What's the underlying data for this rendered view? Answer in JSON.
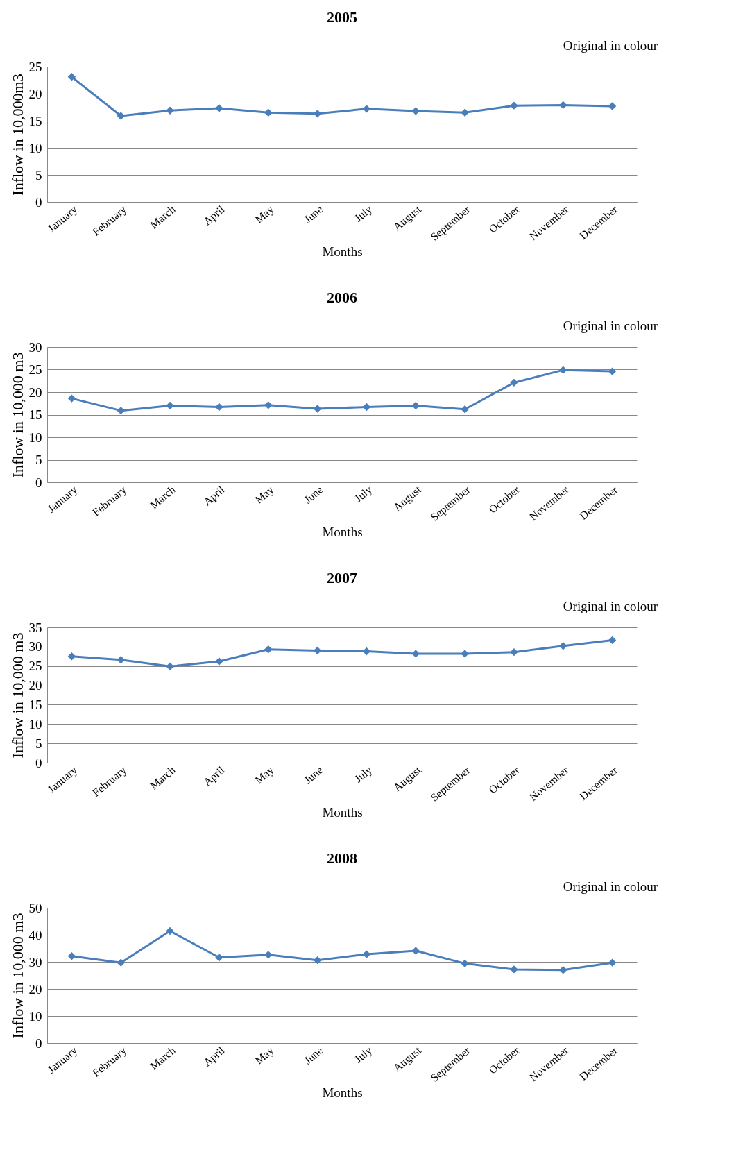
{
  "chart_data": [
    {
      "type": "line",
      "title": "2005",
      "xlabel": "Months",
      "ylabel": "Inflow in 10,000m3",
      "annotations": [
        "Original in colour"
      ],
      "categories": [
        "January",
        "February",
        "March",
        "April",
        "May",
        "June",
        "July",
        "August",
        "September",
        "October",
        "November",
        "December"
      ],
      "series": [
        {
          "color": "#4a7ebb",
          "values": [
            23.1,
            15.9,
            16.9,
            17.3,
            16.5,
            16.3,
            17.2,
            16.8,
            16.5,
            17.8,
            17.9,
            17.7
          ]
        }
      ],
      "ylim": [
        0,
        25
      ],
      "yticks": [
        0,
        5,
        10,
        15,
        20,
        25
      ],
      "grid": "y",
      "marker": "diamond"
    },
    {
      "type": "line",
      "title": "2006",
      "xlabel": "Months",
      "ylabel": "Inflow in 10,000 m3",
      "annotations": [
        "Original in colour"
      ],
      "categories": [
        "January",
        "February",
        "March",
        "April",
        "May",
        "June",
        "July",
        "August",
        "September",
        "October",
        "November",
        "December"
      ],
      "series": [
        {
          "color": "#4a7ebb",
          "values": [
            18.6,
            15.9,
            17.0,
            16.7,
            17.1,
            16.3,
            16.7,
            17.0,
            16.2,
            22.1,
            24.9,
            24.6
          ]
        }
      ],
      "ylim": [
        0,
        30
      ],
      "yticks": [
        0,
        5,
        10,
        15,
        20,
        25,
        30
      ],
      "grid": "y",
      "marker": "diamond"
    },
    {
      "type": "line",
      "title": "2007",
      "xlabel": "Months",
      "ylabel": "Inflow in 10,000 m3",
      "annotations": [
        "Original in colour"
      ],
      "categories": [
        "January",
        "February",
        "March",
        "April",
        "May",
        "June",
        "July",
        "August",
        "September",
        "October",
        "November",
        "December"
      ],
      "series": [
        {
          "color": "#4a7ebb",
          "values": [
            27.5,
            26.6,
            24.9,
            26.2,
            29.3,
            29.0,
            28.8,
            28.2,
            28.2,
            28.6,
            30.2,
            31.7
          ]
        }
      ],
      "ylim": [
        0,
        35
      ],
      "yticks": [
        0,
        5,
        10,
        15,
        20,
        25,
        30,
        35
      ],
      "grid": "y",
      "marker": "diamond"
    },
    {
      "type": "line",
      "title": "2008",
      "xlabel": "Months",
      "ylabel": "Inflow in 10,000 m3",
      "annotations": [
        "Original in colour"
      ],
      "categories": [
        "January",
        "February",
        "March",
        "April",
        "May",
        "June",
        "July",
        "August",
        "September",
        "October",
        "November",
        "December"
      ],
      "series": [
        {
          "color": "#4a7ebb",
          "values": [
            32.1,
            29.7,
            41.4,
            31.6,
            32.6,
            30.6,
            32.8,
            34.1,
            29.4,
            27.2,
            27.0,
            29.7
          ]
        }
      ],
      "ylim": [
        0,
        50
      ],
      "yticks": [
        0,
        10,
        20,
        30,
        40,
        50
      ],
      "grid": "y",
      "marker": "diamond"
    }
  ]
}
